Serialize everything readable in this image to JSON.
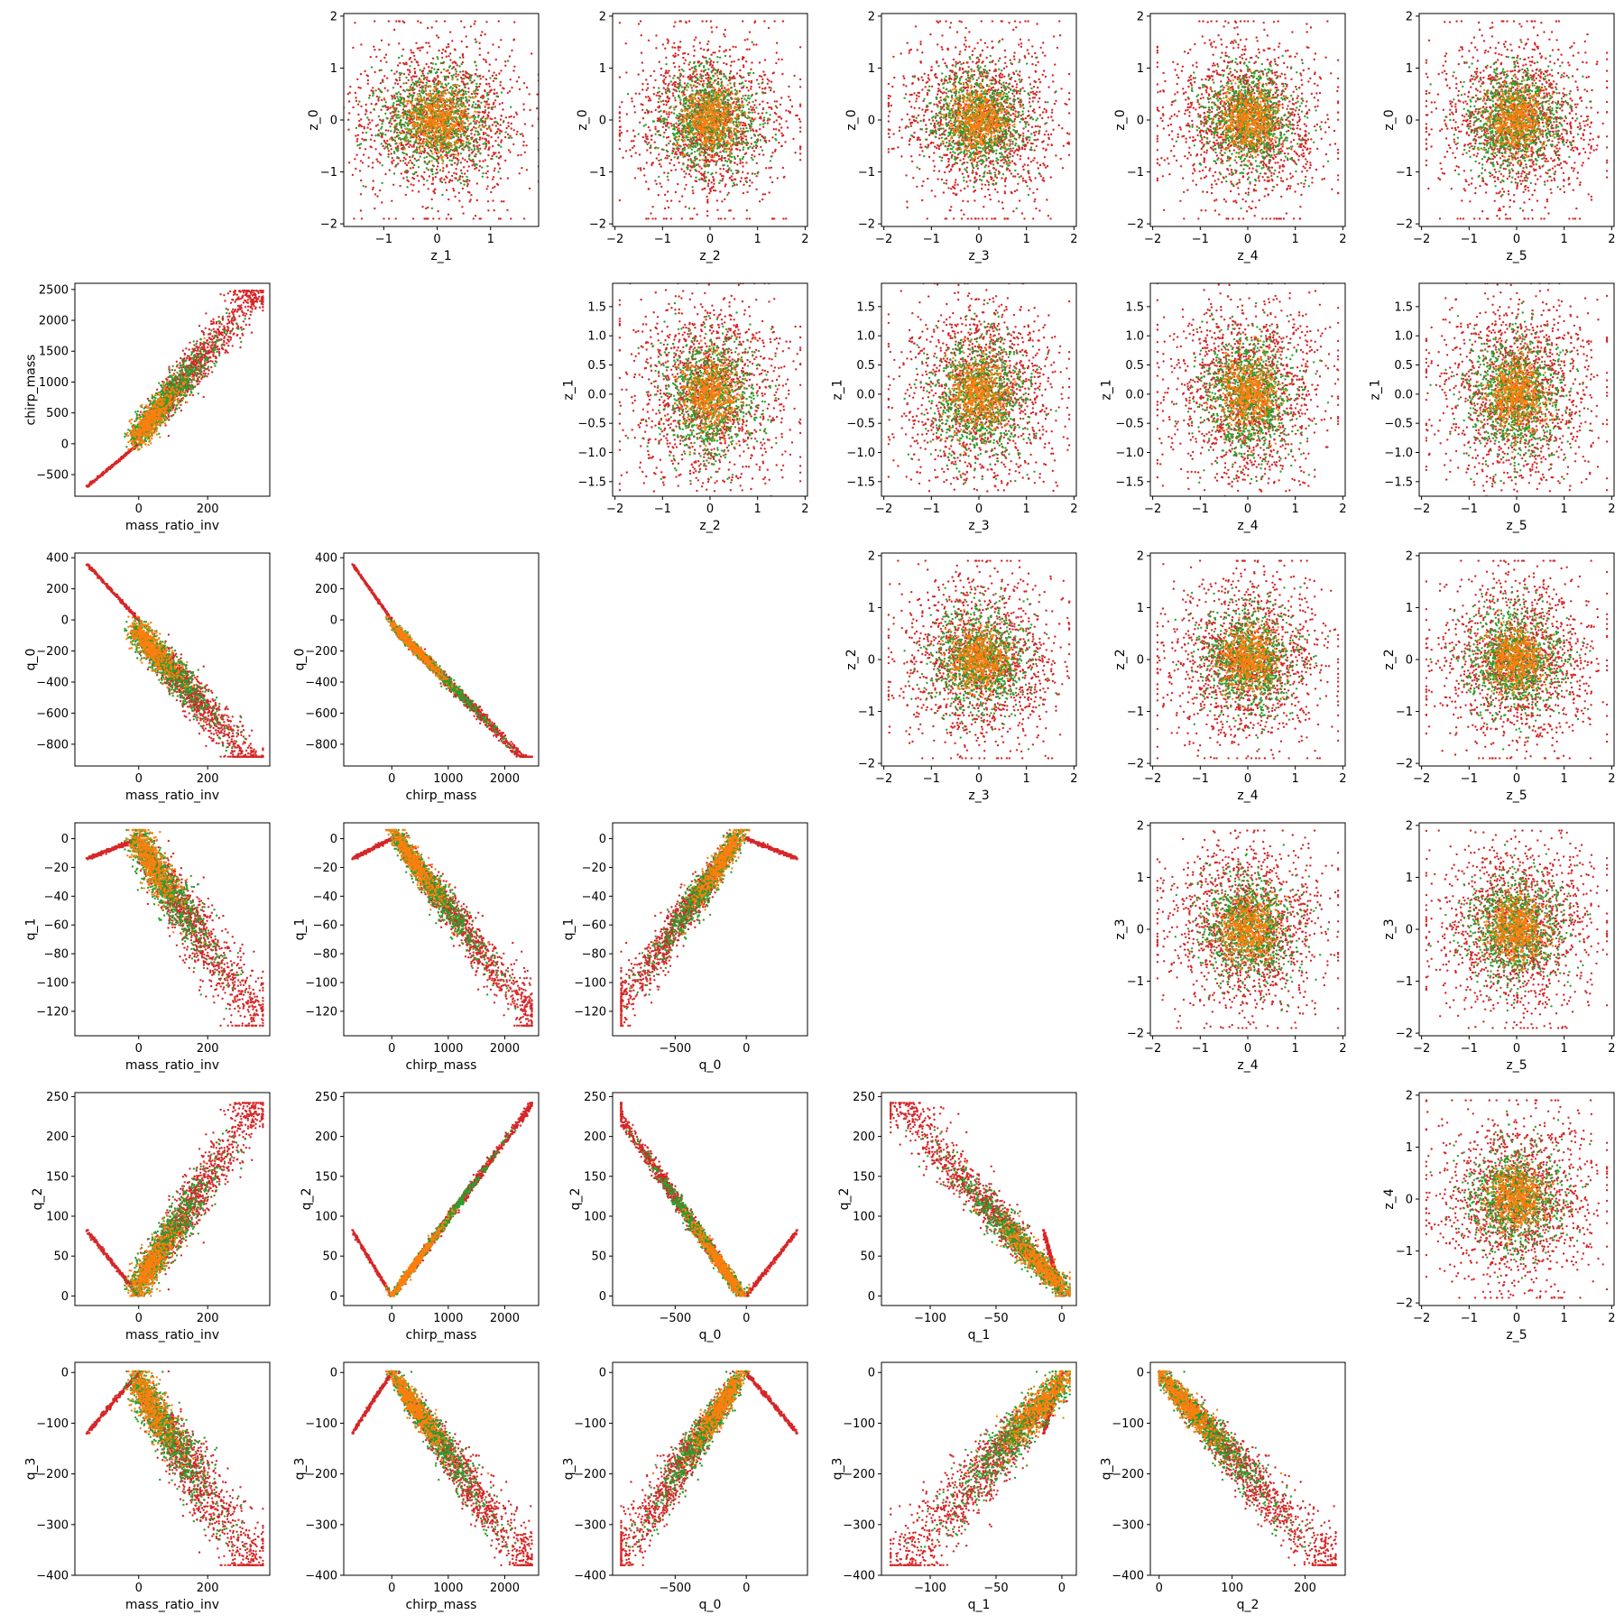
{
  "chart_data": {
    "type": "scatter",
    "layout": "pairplot-6x6",
    "series": [
      {
        "name": "",
        "color": "#d62728",
        "draw_order": 1
      },
      {
        "name": "",
        "color": "#2ca02c",
        "draw_order": 2
      },
      {
        "name": "",
        "color": "#ff7f0e",
        "draw_order": 3
      }
    ],
    "variables": {
      "z_0": {
        "label": "z_0",
        "lim": [
          -2.05,
          2.05
        ],
        "ticks": [
          -2,
          -1,
          0,
          1,
          2
        ],
        "tick_labels": [
          "−2",
          "−1",
          "0",
          "1",
          "2"
        ]
      },
      "z_1": {
        "label": "z_1",
        "lim": [
          -1.75,
          1.9
        ],
        "ticks": [
          -1.5,
          -1.0,
          -0.5,
          0.0,
          0.5,
          1.0,
          1.5
        ],
        "tick_labels": [
          "−1.5",
          "−1.0",
          "−0.5",
          "0.0",
          "0.5",
          "1.0",
          "1.5"
        ]
      },
      "z_1_x": {
        "label": "z_1",
        "lim": [
          -1.75,
          1.9
        ],
        "ticks": [
          -1,
          0,
          1
        ],
        "tick_labels": [
          "−1",
          "0",
          "1"
        ]
      },
      "z_2": {
        "label": "z_2",
        "lim": [
          -2.05,
          2.05
        ],
        "ticks": [
          -2,
          -1,
          0,
          1,
          2
        ],
        "tick_labels": [
          "−2",
          "−1",
          "0",
          "1",
          "2"
        ]
      },
      "z_3": {
        "label": "z_3",
        "lim": [
          -2.05,
          2.05
        ],
        "ticks": [
          -2,
          -1,
          0,
          1,
          2
        ],
        "tick_labels": [
          "−2",
          "−1",
          "0",
          "1",
          "2"
        ]
      },
      "z_4": {
        "label": "z_4",
        "lim": [
          -2.05,
          2.05
        ],
        "ticks": [
          -2,
          -1,
          0,
          1,
          2
        ],
        "tick_labels": [
          "−2",
          "−1",
          "0",
          "1",
          "2"
        ]
      },
      "z_5": {
        "label": "z_5",
        "lim": [
          -2.05,
          2.05
        ],
        "ticks": [
          -2,
          -1,
          0,
          1,
          2
        ],
        "tick_labels": [
          "−2",
          "−1",
          "0",
          "1",
          "2"
        ]
      },
      "mass_ratio_inv": {
        "label": "mass_ratio_inv",
        "lim": [
          -185,
          380
        ],
        "ticks": [
          0,
          200
        ],
        "tick_labels": [
          "0",
          "200"
        ]
      },
      "chirp_mass": {
        "label": "chirp_mass",
        "lim": [
          -850,
          2600
        ],
        "ticks": [
          -500,
          0,
          500,
          1000,
          1500,
          2000,
          2500
        ],
        "tick_labels": [
          "−500",
          "0",
          "500",
          "1000",
          "1500",
          "2000",
          "2500"
        ]
      },
      "chirp_mass_x": {
        "label": "chirp_mass",
        "lim": [
          -850,
          2600
        ],
        "ticks": [
          0,
          1000,
          2000
        ],
        "tick_labels": [
          "0",
          "1000",
          "2000"
        ]
      },
      "q_0": {
        "label": "q_0",
        "lim": [
          -940,
          430
        ],
        "ticks": [
          -800,
          -600,
          -400,
          -200,
          0,
          200,
          400
        ],
        "tick_labels": [
          "−800",
          "−600",
          "−400",
          "−200",
          "0",
          "200",
          "400"
        ]
      },
      "q_0_x": {
        "label": "q_0",
        "lim": [
          -940,
          430
        ],
        "ticks": [
          -500,
          0
        ],
        "tick_labels": [
          "−500",
          "0"
        ]
      },
      "q_1": {
        "label": "q_1",
        "lim": [
          -137,
          11
        ],
        "ticks": [
          -120,
          -100,
          -80,
          -60,
          -40,
          -20,
          0
        ],
        "tick_labels": [
          "−120",
          "−100",
          "−80",
          "−60",
          "−40",
          "−20",
          "0"
        ]
      },
      "q_1_x": {
        "label": "q_1",
        "lim": [
          -137,
          11
        ],
        "ticks": [
          -100,
          -50,
          0
        ],
        "tick_labels": [
          "−100",
          "−50",
          "0"
        ]
      },
      "q_2": {
        "label": "q_2",
        "lim": [
          -12,
          255
        ],
        "ticks": [
          0,
          50,
          100,
          150,
          200,
          250
        ],
        "tick_labels": [
          "0",
          "50",
          "100",
          "150",
          "200",
          "250"
        ]
      },
      "q_2_x": {
        "label": "q_2",
        "lim": [
          -12,
          255
        ],
        "ticks": [
          0,
          100,
          200
        ],
        "tick_labels": [
          "0",
          "100",
          "200"
        ]
      },
      "q_3": {
        "label": "q_3",
        "lim": [
          -400,
          20
        ],
        "ticks": [
          -400,
          -300,
          -200,
          -100,
          0
        ],
        "tick_labels": [
          "−400",
          "−300",
          "−200",
          "−100",
          "0"
        ]
      }
    },
    "panels": [
      {
        "row": 0,
        "col": 1,
        "x": "z_1_x",
        "y": "z_0",
        "kind": "blob"
      },
      {
        "row": 0,
        "col": 2,
        "x": "z_2",
        "y": "z_0",
        "kind": "blob"
      },
      {
        "row": 0,
        "col": 3,
        "x": "z_3",
        "y": "z_0",
        "kind": "blob"
      },
      {
        "row": 0,
        "col": 4,
        "x": "z_4",
        "y": "z_0",
        "kind": "blob"
      },
      {
        "row": 0,
        "col": 5,
        "x": "z_5",
        "y": "z_0",
        "kind": "blob"
      },
      {
        "row": 1,
        "col": 0,
        "x": "mass_ratio_inv",
        "y": "chirp_mass",
        "kind": "mr_cm"
      },
      {
        "row": 1,
        "col": 2,
        "x": "z_2",
        "y": "z_1",
        "kind": "blob"
      },
      {
        "row": 1,
        "col": 3,
        "x": "z_3",
        "y": "z_1",
        "kind": "blob"
      },
      {
        "row": 1,
        "col": 4,
        "x": "z_4",
        "y": "z_1",
        "kind": "blob"
      },
      {
        "row": 1,
        "col": 5,
        "x": "z_5",
        "y": "z_1",
        "kind": "blob"
      },
      {
        "row": 2,
        "col": 0,
        "x": "mass_ratio_inv",
        "y": "q_0",
        "kind": "mr_q0"
      },
      {
        "row": 2,
        "col": 1,
        "x": "chirp_mass_x",
        "y": "q_0",
        "kind": "cm_q0"
      },
      {
        "row": 2,
        "col": 3,
        "x": "z_3",
        "y": "z_2",
        "kind": "blob"
      },
      {
        "row": 2,
        "col": 4,
        "x": "z_4",
        "y": "z_2",
        "kind": "blob"
      },
      {
        "row": 2,
        "col": 5,
        "x": "z_5",
        "y": "z_2",
        "kind": "blob"
      },
      {
        "row": 3,
        "col": 0,
        "x": "mass_ratio_inv",
        "y": "q_1",
        "kind": "mr_q1"
      },
      {
        "row": 3,
        "col": 1,
        "x": "chirp_mass_x",
        "y": "q_1",
        "kind": "cm_q1"
      },
      {
        "row": 3,
        "col": 2,
        "x": "q_0_x",
        "y": "q_1",
        "kind": "q0_q1"
      },
      {
        "row": 3,
        "col": 4,
        "x": "z_4",
        "y": "z_3",
        "kind": "blob"
      },
      {
        "row": 3,
        "col": 5,
        "x": "z_5",
        "y": "z_3",
        "kind": "blob"
      },
      {
        "row": 4,
        "col": 0,
        "x": "mass_ratio_inv",
        "y": "q_2",
        "kind": "mr_q2"
      },
      {
        "row": 4,
        "col": 1,
        "x": "chirp_mass_x",
        "y": "q_2",
        "kind": "cm_q2"
      },
      {
        "row": 4,
        "col": 2,
        "x": "q_0_x",
        "y": "q_2",
        "kind": "q0_q2"
      },
      {
        "row": 4,
        "col": 3,
        "x": "q_1_x",
        "y": "q_2",
        "kind": "q1_q2"
      },
      {
        "row": 4,
        "col": 5,
        "x": "z_5",
        "y": "z_4",
        "kind": "blob"
      },
      {
        "row": 5,
        "col": 0,
        "x": "mass_ratio_inv",
        "y": "q_3",
        "kind": "mr_q3"
      },
      {
        "row": 5,
        "col": 1,
        "x": "chirp_mass_x",
        "y": "q_3",
        "kind": "cm_q3"
      },
      {
        "row": 5,
        "col": 2,
        "x": "q_0_x",
        "y": "q_3",
        "kind": "q0_q3"
      },
      {
        "row": 5,
        "col": 3,
        "x": "q_1_x",
        "y": "q_3",
        "kind": "q1_q3"
      },
      {
        "row": 5,
        "col": 4,
        "x": "q_2_x",
        "y": "q_3",
        "kind": "q2_q3"
      }
    ],
    "grid": false,
    "legend": "none"
  }
}
